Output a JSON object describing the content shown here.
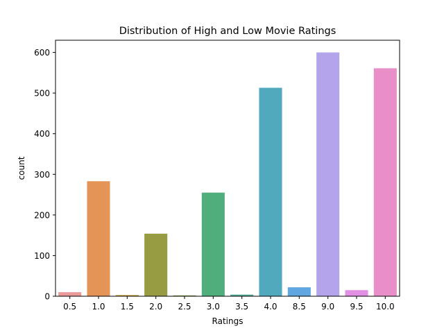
{
  "chart_data": {
    "type": "bar",
    "title": "Distribution of High and Low Movie Ratings",
    "xlabel": "Ratings",
    "ylabel": "count",
    "categories": [
      "0.5",
      "1.0",
      "1.5",
      "2.0",
      "2.5",
      "3.0",
      "3.5",
      "4.0",
      "8.5",
      "9.0",
      "9.5",
      "10.0"
    ],
    "values": [
      10,
      283,
      3,
      154,
      2,
      255,
      4,
      513,
      22,
      600,
      15,
      561
    ],
    "colors": [
      "#ea9999",
      "#e39456",
      "#c8a444",
      "#979c43",
      "#83a546",
      "#4fae7c",
      "#53ab9a",
      "#50a9bd",
      "#5fa7e0",
      "#b3a4ec",
      "#e290e3",
      "#e78fc6"
    ],
    "yticks": [
      0,
      100,
      200,
      300,
      400,
      500,
      600
    ],
    "ylim": [
      0,
      630
    ],
    "grid": false,
    "legend": "none"
  }
}
